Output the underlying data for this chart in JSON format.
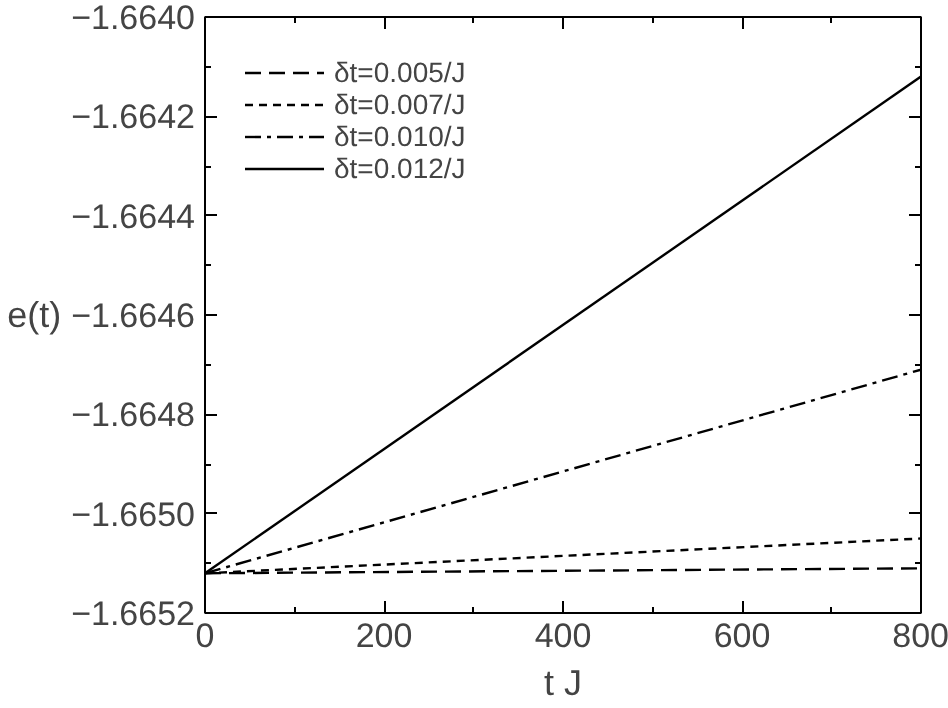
{
  "chart_data": {
    "type": "line",
    "xlabel": "t J",
    "ylabel": "e(t)",
    "xlim": [
      0,
      800
    ],
    "ylim": [
      -1.6652,
      -1.664
    ],
    "xticks": [
      0,
      200,
      400,
      600,
      800,
      {
        "value": 100,
        "label": null
      },
      {
        "value": 300,
        "label": null
      },
      {
        "value": 500,
        "label": null
      },
      {
        "value": 700,
        "label": null
      }
    ],
    "yticks": [
      {
        "value": -1.664,
        "label": "−1.6640"
      },
      {
        "value": -1.6642,
        "label": "−1.6642"
      },
      {
        "value": -1.6644,
        "label": "−1.6644"
      },
      {
        "value": -1.6646,
        "label": "−1.6646"
      },
      {
        "value": -1.6648,
        "label": "−1.6648"
      },
      {
        "value": -1.665,
        "label": "−1.6650"
      },
      {
        "value": -1.6652,
        "label": "−1.6652"
      },
      {
        "value": -1.6641,
        "label": null
      },
      {
        "value": -1.6643,
        "label": null
      },
      {
        "value": -1.6645,
        "label": null
      },
      {
        "value": -1.6647,
        "label": null
      },
      {
        "value": -1.6649,
        "label": null
      },
      {
        "value": -1.6651,
        "label": null
      }
    ],
    "grid": false,
    "legend": "top left",
    "marker": "none",
    "x": [
      0,
      800
    ],
    "series": [
      {
        "name": "δt=0.005/J",
        "color": "#000000",
        "line_style": "dashed",
        "values": [
          -1.66512,
          -1.66511
        ]
      },
      {
        "name": "δt=0.007/J",
        "color": "#000000",
        "line_style": "dotted",
        "values": [
          -1.66512,
          -1.66505
        ]
      },
      {
        "name": "δt=0.010/J",
        "color": "#000000",
        "line_style": "dashdot",
        "values": [
          -1.66512,
          -1.66471
        ]
      },
      {
        "name": "δt=0.012/J",
        "color": "#000000",
        "line_style": "solid",
        "values": [
          -1.66512,
          -1.66412
        ]
      }
    ]
  }
}
